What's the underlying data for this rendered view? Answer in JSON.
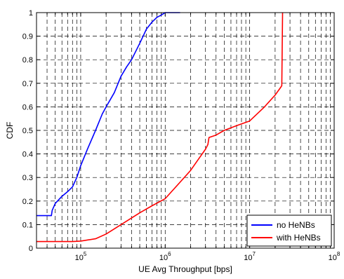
{
  "chart_data": {
    "type": "line",
    "xscale": "log",
    "xlim": [
      30000,
      100000000
    ],
    "ylim": [
      0,
      1
    ],
    "xlabel": "UE Avg Throughput [bps]",
    "ylabel": "CDF",
    "grid": true,
    "legend": "bottom-right",
    "xticks": [
      {
        "value": 100000,
        "base": "10",
        "exp": "5"
      },
      {
        "value": 1000000,
        "base": "10",
        "exp": "6"
      },
      {
        "value": 10000000,
        "base": "10",
        "exp": "7"
      },
      {
        "value": 100000000,
        "base": "10",
        "exp": "8"
      }
    ],
    "yticks": [
      "0",
      "0.1",
      "0.2",
      "0.3",
      "0.4",
      "0.5",
      "0.6",
      "0.7",
      "0.8",
      "0.9",
      "1"
    ],
    "series": [
      {
        "name": "no HeNBs",
        "color": "#0000ff",
        "x": [
          30000,
          45000,
          46000,
          50000,
          60000,
          70000,
          80000,
          90000,
          100000,
          120000,
          150000,
          180000,
          200000,
          250000,
          300000,
          350000,
          400000,
          500000,
          600000,
          700000,
          800000,
          900000,
          1000000,
          1100000,
          1300000,
          1500000
        ],
        "y": [
          0.138,
          0.138,
          0.16,
          0.19,
          0.22,
          0.24,
          0.26,
          0.3,
          0.35,
          0.42,
          0.5,
          0.57,
          0.6,
          0.66,
          0.73,
          0.77,
          0.8,
          0.87,
          0.93,
          0.96,
          0.98,
          0.99,
          1.0,
          1.0,
          1.0,
          1.0
        ]
      },
      {
        "name": "with HeNBs",
        "color": "#ff0000",
        "x": [
          30000,
          80000,
          100000,
          150000,
          200000,
          300000,
          500000,
          700000,
          1000000,
          1500000,
          2000000,
          2500000,
          3000000,
          3200000,
          3300000,
          4000000,
          5000000,
          7000000,
          10000000,
          15000000,
          20000000,
          23000000,
          24000000,
          24500000
        ],
        "y": [
          0.028,
          0.028,
          0.03,
          0.04,
          0.06,
          0.1,
          0.15,
          0.18,
          0.21,
          0.28,
          0.33,
          0.38,
          0.42,
          0.44,
          0.47,
          0.48,
          0.5,
          0.52,
          0.54,
          0.6,
          0.65,
          0.68,
          0.69,
          1.0
        ]
      }
    ]
  }
}
